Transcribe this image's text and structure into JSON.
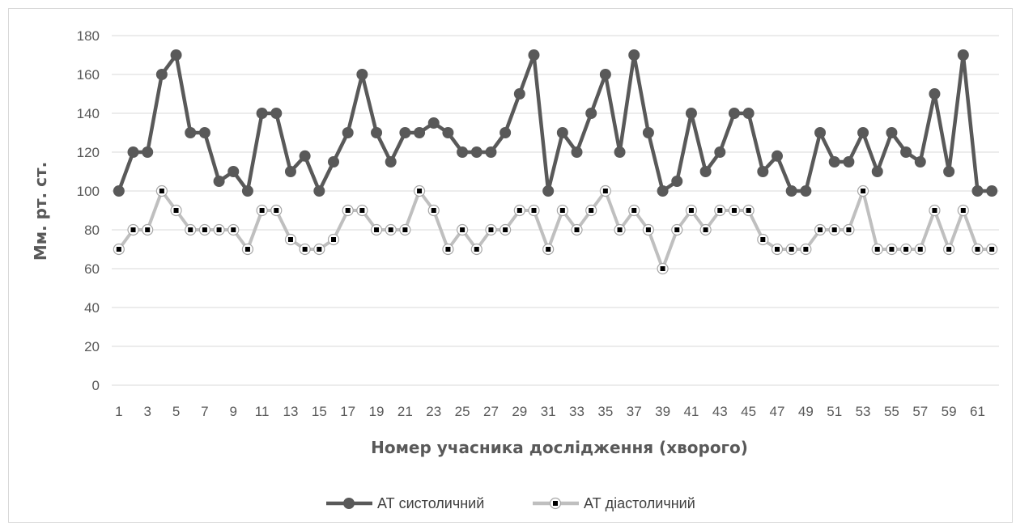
{
  "chart_data": {
    "type": "line",
    "xlabel": "Номер учасника дослідження (хворого)",
    "ylabel": "Мм. рт. ст.",
    "ylim": [
      0,
      180
    ],
    "yticks": [
      0,
      20,
      40,
      60,
      80,
      100,
      120,
      140,
      160,
      180
    ],
    "x": [
      1,
      2,
      3,
      4,
      5,
      6,
      7,
      8,
      9,
      10,
      11,
      12,
      13,
      14,
      15,
      16,
      17,
      18,
      19,
      20,
      21,
      22,
      23,
      24,
      25,
      26,
      27,
      28,
      29,
      30,
      31,
      32,
      33,
      34,
      35,
      36,
      37,
      38,
      39,
      40,
      41,
      42,
      43,
      44,
      45,
      46,
      47,
      48,
      49,
      50,
      51,
      52,
      53,
      54,
      55,
      56,
      57,
      58,
      59,
      60,
      61,
      62
    ],
    "xtick_labels": [
      "1",
      "3",
      "5",
      "7",
      "9",
      "11",
      "13",
      "15",
      "17",
      "19",
      "21",
      "23",
      "25",
      "27",
      "29",
      "31",
      "33",
      "35",
      "37",
      "39",
      "41",
      "43",
      "45",
      "47",
      "49",
      "51",
      "53",
      "55",
      "57",
      "59",
      "61"
    ],
    "grid": "horizontal",
    "legend_position": "bottom",
    "series": [
      {
        "name": "АТ систоличний",
        "color": "#595959",
        "values": [
          100,
          120,
          120,
          160,
          170,
          130,
          130,
          105,
          110,
          100,
          140,
          140,
          110,
          118,
          100,
          115,
          130,
          160,
          130,
          115,
          130,
          130,
          135,
          130,
          120,
          120,
          120,
          130,
          150,
          170,
          100,
          130,
          120,
          140,
          160,
          120,
          170,
          130,
          100,
          105,
          140,
          110,
          120,
          140,
          140,
          110,
          118,
          100,
          100,
          130,
          115,
          115,
          130,
          110,
          130,
          120,
          115,
          150,
          110,
          170,
          100,
          100
        ]
      },
      {
        "name": "АТ діастоличний",
        "color": "#bfbfbf",
        "values": [
          70,
          80,
          80,
          100,
          90,
          80,
          80,
          80,
          80,
          70,
          90,
          90,
          75,
          70,
          70,
          75,
          90,
          90,
          80,
          80,
          80,
          100,
          90,
          70,
          80,
          70,
          80,
          80,
          90,
          90,
          70,
          90,
          80,
          90,
          100,
          80,
          90,
          80,
          60,
          80,
          90,
          80,
          90,
          90,
          90,
          75,
          70,
          70,
          70,
          80,
          80,
          80,
          100,
          70,
          70,
          70,
          70,
          90,
          70,
          90,
          70,
          70
        ]
      }
    ]
  }
}
